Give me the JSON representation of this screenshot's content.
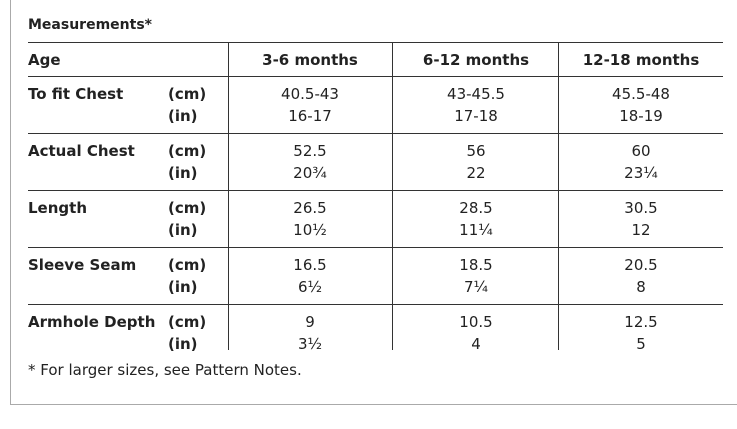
{
  "title": "Measurements*",
  "table": {
    "header": [
      "Age",
      "3-6 months",
      "6-12 months",
      "12-18 months"
    ],
    "rows": [
      {
        "label": "To fit Chest",
        "units": [
          "(cm)",
          "(in)"
        ],
        "values": [
          [
            "40.5-43",
            "16-17"
          ],
          [
            "43-45.5",
            "17-18"
          ],
          [
            "45.5-48",
            "18-19"
          ]
        ]
      },
      {
        "label": "Actual Chest",
        "units": [
          "(cm)",
          "(in)"
        ],
        "values": [
          [
            "52.5",
            "20¾"
          ],
          [
            "56",
            "22"
          ],
          [
            "60",
            "23¼"
          ]
        ]
      },
      {
        "label": "Length",
        "units": [
          "(cm)",
          "(in)"
        ],
        "values": [
          [
            "26.5",
            "10½"
          ],
          [
            "28.5",
            "11¼"
          ],
          [
            "30.5",
            "12"
          ]
        ]
      },
      {
        "label": "Sleeve Seam",
        "units": [
          "(cm)",
          "(in)"
        ],
        "values": [
          [
            "16.5",
            "6½"
          ],
          [
            "18.5",
            "7¼"
          ],
          [
            "20.5",
            "8"
          ]
        ]
      },
      {
        "label": "Armhole Depth",
        "units": [
          "(cm)",
          "(in)"
        ],
        "values": [
          [
            "9",
            "3½"
          ],
          [
            "10.5",
            "4"
          ],
          [
            "12.5",
            "5"
          ]
        ]
      }
    ]
  },
  "footnote": "* For larger sizes, see Pattern Notes."
}
